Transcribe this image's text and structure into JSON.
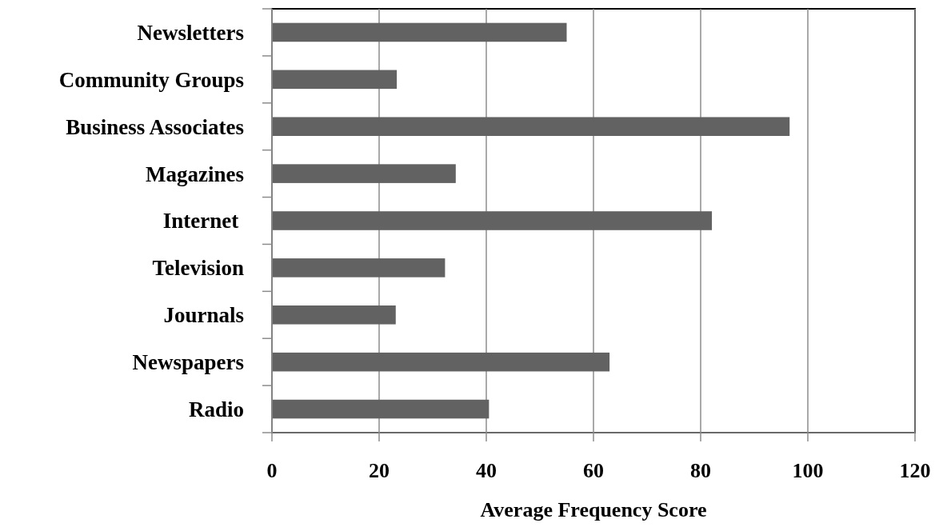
{
  "chart_data": {
    "type": "bar",
    "orientation": "horizontal",
    "xlabel": "Average Frequency Score",
    "categories": [
      "Newsletters",
      "Community Groups",
      "Business Associates",
      "Magazines",
      "Internet ",
      "Television",
      "Journals",
      "Newspapers",
      "Radio"
    ],
    "values": [
      55,
      23.3,
      96.6,
      34.3,
      82.1,
      32.3,
      23.1,
      63,
      40.5
    ],
    "color": "#626262",
    "xlim": [
      0,
      120
    ],
    "xticks": [
      0,
      20,
      40,
      60,
      80,
      100,
      120
    ],
    "grid": "x"
  }
}
